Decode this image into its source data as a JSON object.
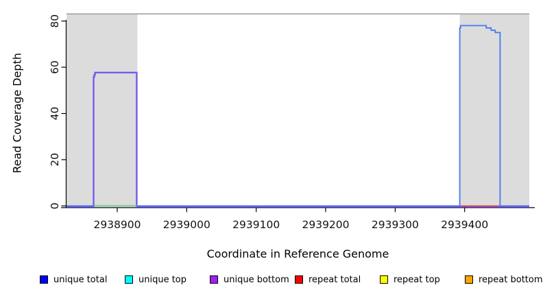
{
  "chart_data": {
    "type": "line",
    "title": "",
    "xlabel": "Coordinate in Reference Genome",
    "ylabel": "Read Coverage Depth",
    "xlim": [
      2938827,
      2939493
    ],
    "ylim": [
      0,
      83
    ],
    "xticks": [
      2938900,
      2939000,
      2939100,
      2939200,
      2939300,
      2939400
    ],
    "yticks": [
      0,
      20,
      40,
      60,
      80
    ],
    "grid": false,
    "legend_position": "bottom",
    "shaded_regions": [
      {
        "name": "masked-region-left",
        "x1": 2938827,
        "x2": 2938929,
        "fill": "#DCDCDC"
      },
      {
        "name": "masked-region-right",
        "x1": 2939393,
        "x2": 2939493,
        "fill": "#DCDCDC"
      }
    ],
    "region_top_border_color": "#A0A0A0",
    "series": [
      {
        "name": "unique bottom",
        "color": "#7A58EC",
        "width": 2.4,
        "offset_y": 1,
        "points": [
          [
            2938827,
            0
          ],
          [
            2938866,
            0
          ],
          [
            2938866,
            56
          ],
          [
            2938867,
            56
          ],
          [
            2938867,
            57
          ],
          [
            2938868,
            57
          ],
          [
            2938868,
            58
          ],
          [
            2938928,
            58
          ],
          [
            2938928,
            0
          ],
          [
            2939493,
            0
          ]
        ]
      },
      {
        "name": "unique total",
        "color": "#4577F3",
        "width": 1.8,
        "points": [
          [
            2938827,
            0
          ],
          [
            2939393,
            0
          ],
          [
            2939393,
            77
          ],
          [
            2939394,
            77
          ],
          [
            2939394,
            78
          ],
          [
            2939431,
            78
          ],
          [
            2939431,
            77
          ],
          [
            2939438,
            77
          ],
          [
            2939438,
            76
          ],
          [
            2939444,
            76
          ],
          [
            2939444,
            75
          ],
          [
            2939451,
            75
          ],
          [
            2939451,
            0
          ],
          [
            2939493,
            0
          ]
        ]
      },
      {
        "name": "unique top + repeat top (y=0)",
        "color": "#7BD87B",
        "width": 1.5,
        "points": [
          [
            2938867,
            0
          ],
          [
            2938928,
            0
          ]
        ]
      },
      {
        "name": "repeat total (y=0)",
        "color": "#EE3B3B",
        "width": 1.5,
        "points": [
          [
            2939394,
            0
          ],
          [
            2939450,
            0
          ]
        ]
      }
    ],
    "legend": [
      {
        "label": "unique total",
        "color": "#0000FF"
      },
      {
        "label": "unique top",
        "color": "#00FFFF"
      },
      {
        "label": "unique bottom",
        "color": "#A020F0"
      },
      {
        "label": "repeat total",
        "color": "#FF0000"
      },
      {
        "label": "repeat top",
        "color": "#FFFF00"
      },
      {
        "label": "repeat bottom",
        "color": "#FFA500"
      }
    ]
  }
}
